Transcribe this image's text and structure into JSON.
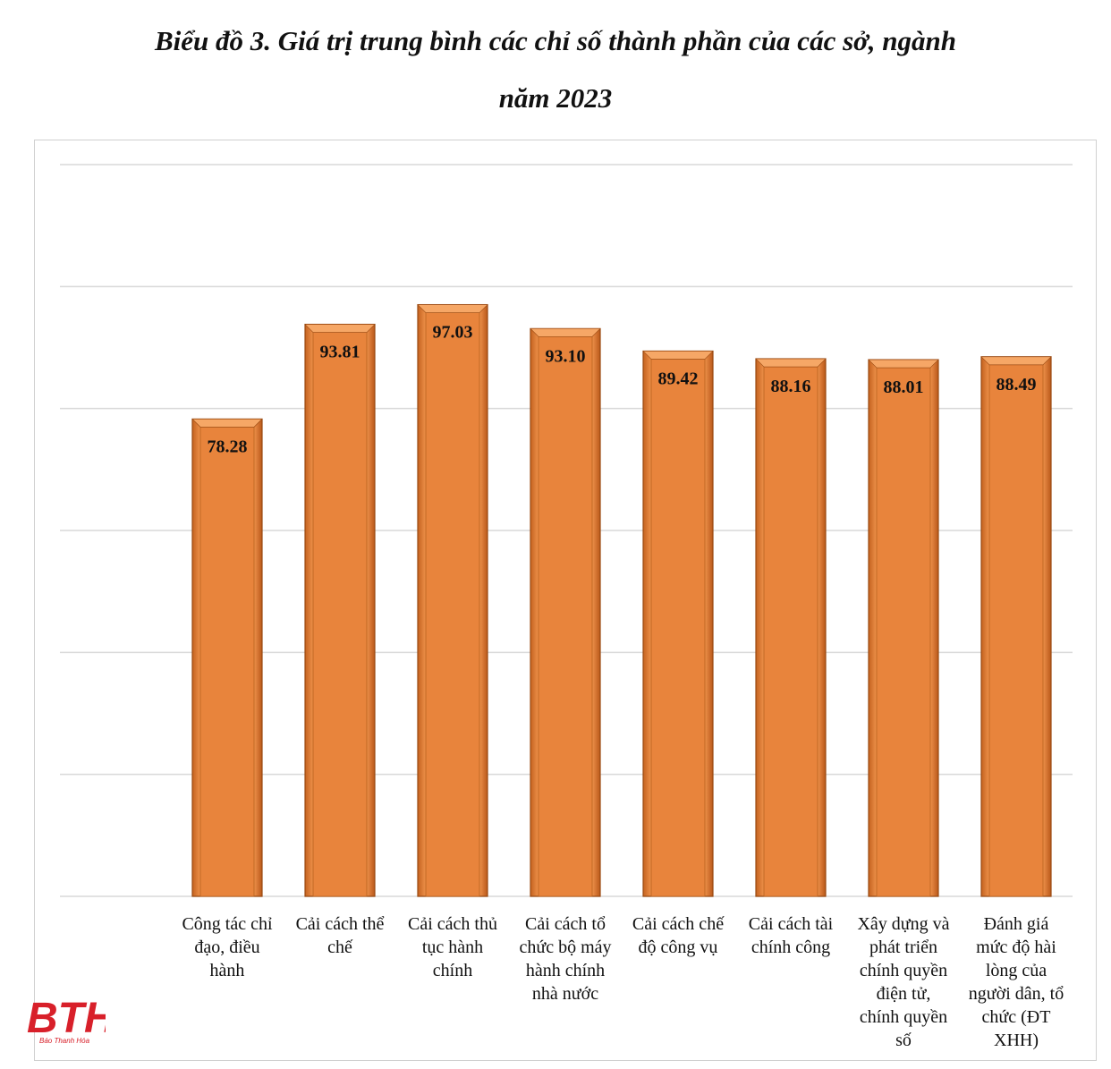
{
  "title_line_1": "Biểu đồ 3. Giá trị trung bình các chỉ số thành phần của các sở, ngành",
  "title_line_2": "năm 2023",
  "logo": {
    "text": "BTH",
    "subtext": "Báo Thanh Hóa"
  },
  "colors": {
    "bar": "#e8843c",
    "bar_edge": "#9a4a12",
    "grid": "#d9d9d9"
  },
  "chart_data": {
    "type": "bar",
    "title": "Biểu đồ 3. Giá trị trung bình các chỉ số thành phần của các sở, ngành năm 2023",
    "xlabel": "",
    "ylabel": "",
    "ylim": [
      0,
      120
    ],
    "grid": true,
    "categories": [
      [
        "Công tác chỉ",
        "đạo, điều",
        "hành"
      ],
      [
        "Cải cách thể",
        "chế"
      ],
      [
        "Cải cách thủ",
        "tục hành",
        "chính"
      ],
      [
        "Cải cách tổ",
        "chức bộ máy",
        "hành chính",
        "nhà nước"
      ],
      [
        "Cải cách chế",
        "độ công vụ"
      ],
      [
        "Cải cách tài",
        "chính công"
      ],
      [
        "Xây dựng và",
        "phát triển",
        "chính quyền",
        "điện tử,",
        "chính quyền",
        "số"
      ],
      [
        "Đánh giá",
        "mức độ hài",
        "lòng của",
        "người dân, tổ",
        "chức (ĐT",
        "XHH)"
      ]
    ],
    "values": [
      78.28,
      93.81,
      97.03,
      93.1,
      89.42,
      88.16,
      88.01,
      88.49
    ],
    "value_labels": [
      "78.28",
      "93.81",
      "97.03",
      "93.10",
      "89.42",
      "88.16",
      "88.01",
      "88.49"
    ]
  }
}
